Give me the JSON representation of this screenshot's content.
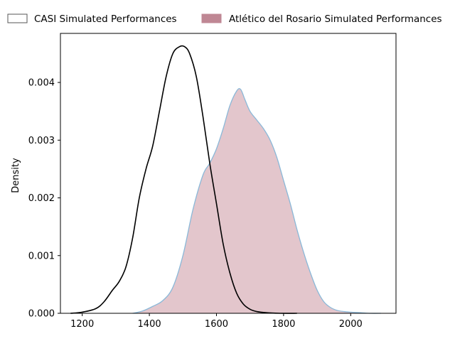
{
  "chart_data": {
    "type": "area",
    "title": "",
    "xlabel": "",
    "ylabel": "Density",
    "xlim": [
      1135,
      2135
    ],
    "ylim": [
      0,
      0.00485
    ],
    "x_ticks": [
      1200,
      1400,
      1600,
      1800,
      2000
    ],
    "x_tick_labels": [
      "1200",
      "1400",
      "1600",
      "1800",
      "2000"
    ],
    "y_ticks": [
      0,
      0.001,
      0.002,
      0.003,
      0.004
    ],
    "y_tick_labels": [
      "0.000",
      "0.001",
      "0.002",
      "0.003",
      "0.004"
    ],
    "grid": false,
    "legend_position": "top",
    "series": [
      {
        "name": "CASI Simulated Performances",
        "style": "line",
        "color": "#000000",
        "x": [
          1165,
          1200,
          1240,
          1265,
          1290,
          1310,
          1330,
          1350,
          1370,
          1390,
          1410,
          1430,
          1450,
          1470,
          1490,
          1505,
          1520,
          1540,
          1560,
          1580,
          1600,
          1620,
          1640,
          1660,
          1680,
          1700,
          1720,
          1750,
          1790,
          1840
        ],
        "y": [
          0.0,
          2e-05,
          8e-05,
          0.0002,
          0.0004,
          0.00055,
          0.0008,
          0.0013,
          0.002,
          0.0025,
          0.0029,
          0.0035,
          0.0041,
          0.0045,
          0.00462,
          0.00462,
          0.0045,
          0.0041,
          0.0034,
          0.0026,
          0.0019,
          0.0012,
          0.0007,
          0.00035,
          0.00016,
          7e-05,
          3e-05,
          1e-05,
          0.0,
          0.0
        ]
      },
      {
        "name": "Atlético del Rosario Simulated Performances",
        "style": "filled",
        "color": "#c0808f",
        "edge_color": "#8ab8d8",
        "x": [
          1350,
          1380,
          1410,
          1440,
          1470,
          1500,
          1530,
          1560,
          1580,
          1600,
          1620,
          1640,
          1660,
          1672,
          1685,
          1700,
          1720,
          1740,
          1760,
          1780,
          1800,
          1820,
          1840,
          1860,
          1880,
          1900,
          1920,
          1940,
          1960,
          1980,
          2000,
          2030,
          2060,
          2090
        ],
        "y": [
          0.0,
          4e-05,
          0.00012,
          0.00022,
          0.00045,
          0.001,
          0.0018,
          0.0024,
          0.0026,
          0.00285,
          0.0032,
          0.0036,
          0.00385,
          0.00388,
          0.0037,
          0.0035,
          0.00335,
          0.0032,
          0.003,
          0.0027,
          0.0023,
          0.0019,
          0.00145,
          0.00105,
          0.0007,
          0.0004,
          0.0002,
          0.0001,
          5e-05,
          3e-05,
          2e-05,
          1e-05,
          0.0,
          0.0
        ]
      }
    ]
  }
}
